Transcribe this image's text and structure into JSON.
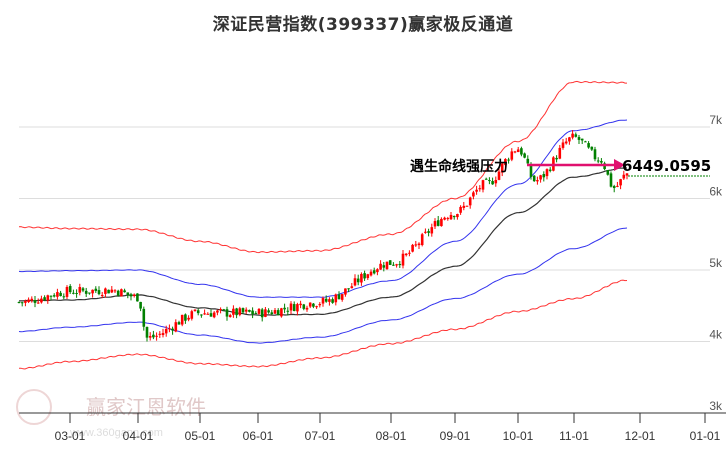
{
  "title": "深证民营指数(399337)赢家极反通道",
  "annotation": {
    "label": "遇生命线强压力",
    "price": "6449.0595",
    "arrow_color": "#e0106e"
  },
  "watermark": {
    "name": "赢家江恩软件",
    "url": "www.360gann.com"
  },
  "colors": {
    "up": "#ff0000",
    "down": "#008000",
    "outer_band": "#ff3333",
    "inner_band": "#3333ee",
    "lifeline": "#333333",
    "grid": "#dddddd"
  },
  "chart_data": {
    "type": "line",
    "title": "深证民营指数(399337)赢家极反通道",
    "xlabel": "",
    "ylabel": "",
    "x_ticks": [
      "03-01",
      "04-01",
      "05-01",
      "06-01",
      "07-01",
      "08-01",
      "09-01",
      "10-01",
      "11-01",
      "12-01",
      "01-01"
    ],
    "y_ticks": [
      "3k",
      "4k",
      "5k",
      "6k",
      "7k"
    ],
    "ylim": [
      3000,
      7300
    ],
    "grid": true,
    "legend": "none",
    "series": [
      {
        "name": "outer_upper",
        "color": "#ff3333",
        "x": [
          "02-10",
          "03-01",
          "04-01",
          "05-01",
          "06-01",
          "07-01",
          "08-01",
          "09-01",
          "10-01",
          "11-01",
          "11-26"
        ],
        "values": [
          5600,
          5580,
          5570,
          5400,
          5250,
          5270,
          5500,
          6000,
          6800,
          7630,
          7620
        ]
      },
      {
        "name": "inner_upper",
        "color": "#3333ee",
        "x": [
          "02-10",
          "03-01",
          "04-01",
          "05-01",
          "06-01",
          "07-01",
          "08-01",
          "09-01",
          "10-01",
          "11-01",
          "11-26"
        ],
        "values": [
          4980,
          4990,
          5000,
          4800,
          4620,
          4620,
          4850,
          5400,
          6200,
          6950,
          7100
        ]
      },
      {
        "name": "lifeline",
        "color": "#333333",
        "x": [
          "02-10",
          "03-01",
          "04-01",
          "05-01",
          "06-01",
          "07-01",
          "08-01",
          "09-01",
          "10-01",
          "11-01",
          "11-26"
        ],
        "values": [
          4570,
          4580,
          4650,
          4470,
          4370,
          4380,
          4620,
          5050,
          5800,
          6300,
          6430
        ]
      },
      {
        "name": "inner_lower",
        "color": "#3333ee",
        "x": [
          "02-10",
          "03-01",
          "04-01",
          "05-01",
          "06-01",
          "07-01",
          "08-01",
          "09-01",
          "10-01",
          "11-01",
          "11-26"
        ],
        "values": [
          4140,
          4200,
          4270,
          4090,
          3980,
          4060,
          4300,
          4600,
          4940,
          5300,
          5590
        ]
      },
      {
        "name": "outer_lower",
        "color": "#ff3333",
        "x": [
          "02-10",
          "03-01",
          "04-01",
          "05-01",
          "06-01",
          "07-01",
          "08-01",
          "09-01",
          "10-01",
          "11-01",
          "11-26"
        ],
        "values": [
          3620,
          3720,
          3820,
          3690,
          3650,
          3770,
          3970,
          4170,
          4420,
          4600,
          4860
        ]
      },
      {
        "name": "price_close",
        "color": "#000000",
        "x": [
          "02-10",
          "03-01",
          "03-20",
          "04-01",
          "04-05",
          "05-01",
          "06-01",
          "07-01",
          "08-01",
          "09-01",
          "09-15",
          "10-01",
          "10-10",
          "11-01",
          "11-15",
          "11-21",
          "11-26"
        ],
        "values": [
          4550,
          4700,
          4720,
          4620,
          4050,
          4400,
          4400,
          4550,
          5100,
          5800,
          6200,
          6700,
          6250,
          6850,
          6550,
          6150,
          6350
        ]
      }
    ],
    "annotations": [
      {
        "text": "遇生命线强压力",
        "value": 6449.0595,
        "label": "6449.0595"
      }
    ]
  }
}
